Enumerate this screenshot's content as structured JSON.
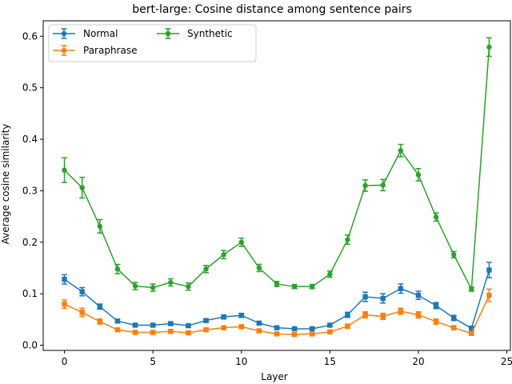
{
  "chart_data": {
    "type": "line",
    "title": "bert-large: Cosine distance among sentence pairs",
    "xlabel": "Layer",
    "ylabel": "Average cosine similarity",
    "xlim": [
      -1.2,
      25.2
    ],
    "ylim": [
      -0.01,
      0.63
    ],
    "xticks": [
      0,
      5,
      10,
      15,
      20,
      25
    ],
    "yticks": [
      0.0,
      0.1,
      0.2,
      0.3,
      0.4,
      0.5,
      0.6
    ],
    "x": [
      0,
      1,
      2,
      3,
      4,
      5,
      6,
      7,
      8,
      9,
      10,
      11,
      12,
      13,
      14,
      15,
      16,
      17,
      18,
      19,
      20,
      21,
      22,
      23,
      24
    ],
    "legend_position": "top-left",
    "grid": false,
    "series": [
      {
        "name": "Normal",
        "color": "#1f77b4",
        "values": [
          0.128,
          0.104,
          0.075,
          0.047,
          0.039,
          0.039,
          0.042,
          0.038,
          0.048,
          0.055,
          0.058,
          0.043,
          0.034,
          0.032,
          0.032,
          0.039,
          0.059,
          0.094,
          0.091,
          0.11,
          0.097,
          0.077,
          0.053,
          0.033,
          0.146
        ],
        "errors": [
          0.009,
          0.008,
          0.005,
          0.003,
          0.003,
          0.003,
          0.003,
          0.003,
          0.003,
          0.004,
          0.004,
          0.003,
          0.003,
          0.003,
          0.003,
          0.003,
          0.005,
          0.009,
          0.009,
          0.009,
          0.008,
          0.006,
          0.005,
          0.004,
          0.015
        ]
      },
      {
        "name": "Paraphrase",
        "color": "#ff7f0e",
        "values": [
          0.08,
          0.064,
          0.046,
          0.03,
          0.025,
          0.025,
          0.027,
          0.024,
          0.03,
          0.034,
          0.036,
          0.028,
          0.022,
          0.021,
          0.022,
          0.026,
          0.037,
          0.059,
          0.056,
          0.066,
          0.059,
          0.046,
          0.034,
          0.023,
          0.097
        ],
        "errors": [
          0.008,
          0.008,
          0.005,
          0.003,
          0.003,
          0.003,
          0.003,
          0.003,
          0.003,
          0.003,
          0.003,
          0.003,
          0.002,
          0.002,
          0.002,
          0.003,
          0.004,
          0.006,
          0.006,
          0.006,
          0.006,
          0.005,
          0.004,
          0.003,
          0.012
        ]
      },
      {
        "name": "Synthetic",
        "color": "#2ca02c",
        "values": [
          0.34,
          0.306,
          0.231,
          0.148,
          0.115,
          0.112,
          0.122,
          0.114,
          0.148,
          0.176,
          0.2,
          0.15,
          0.119,
          0.114,
          0.114,
          0.138,
          0.205,
          0.31,
          0.311,
          0.378,
          0.331,
          0.249,
          0.176,
          0.109,
          0.579
        ],
        "errors": [
          0.024,
          0.02,
          0.013,
          0.009,
          0.007,
          0.007,
          0.007,
          0.007,
          0.007,
          0.008,
          0.008,
          0.007,
          0.005,
          0.004,
          0.004,
          0.006,
          0.009,
          0.011,
          0.011,
          0.012,
          0.012,
          0.008,
          0.006,
          0.004,
          0.018
        ]
      }
    ]
  }
}
